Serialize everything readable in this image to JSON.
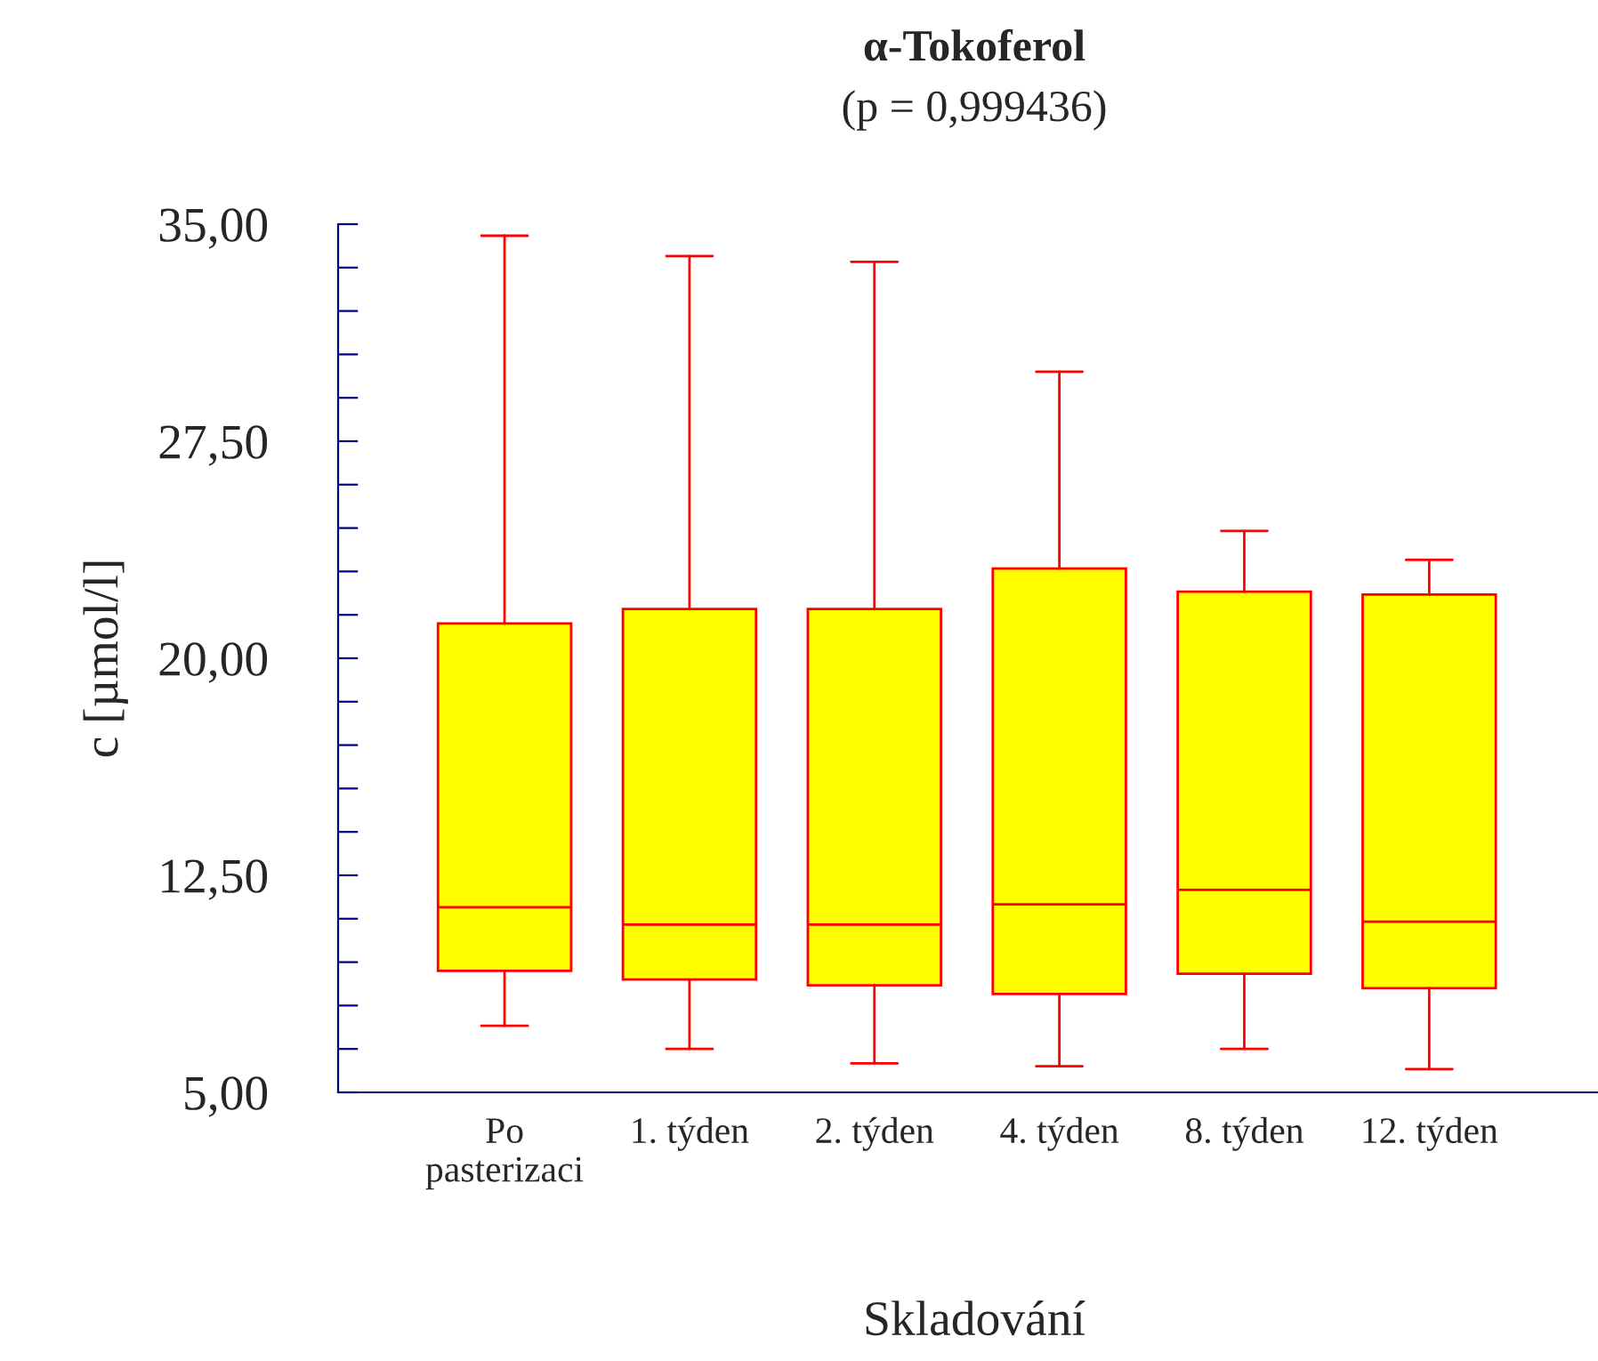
{
  "chart_data": {
    "type": "box",
    "title": "α-Tokoferol",
    "subtitle": "(p = 0,999436)",
    "xlabel": "Skladování",
    "ylabel": "c [µmol/l]",
    "categories": [
      "Po\npasterizaci",
      "1. týden",
      "2. týden",
      "4. týden",
      "8. týden",
      "12. týden"
    ],
    "series": [
      {
        "color": "#ffff00",
        "boxes": [
          {
            "low": 7.3,
            "q1": 9.2,
            "median": 11.4,
            "q3": 21.2,
            "high": 34.6
          },
          {
            "low": 6.5,
            "q1": 8.9,
            "median": 10.8,
            "q3": 21.7,
            "high": 33.9
          },
          {
            "low": 6.0,
            "q1": 8.7,
            "median": 10.8,
            "q3": 21.7,
            "high": 33.7
          },
          {
            "low": 5.9,
            "q1": 8.4,
            "median": 11.5,
            "q3": 23.1,
            "high": 29.9
          },
          {
            "low": 6.5,
            "q1": 9.1,
            "median": 12.0,
            "q3": 22.3,
            "high": 24.4
          },
          {
            "low": 5.8,
            "q1": 8.6,
            "median": 10.9,
            "q3": 22.2,
            "high": 23.4
          }
        ]
      }
    ],
    "ylim": [
      5,
      35
    ],
    "yticks": [
      {
        "value": 5,
        "label": "5,00"
      },
      {
        "value": 6.5,
        "label": null
      },
      {
        "value": 8,
        "label": null
      },
      {
        "value": 9.5,
        "label": null
      },
      {
        "value": 11,
        "label": null
      },
      {
        "value": 12.5,
        "label": "12,50"
      },
      {
        "value": 14,
        "label": null
      },
      {
        "value": 15.5,
        "label": null
      },
      {
        "value": 17,
        "label": null
      },
      {
        "value": 18.5,
        "label": null
      },
      {
        "value": 20,
        "label": "20,00"
      },
      {
        "value": 21.5,
        "label": null
      },
      {
        "value": 23,
        "label": null
      },
      {
        "value": 24.5,
        "label": null
      },
      {
        "value": 26,
        "label": null
      },
      {
        "value": 27.5,
        "label": "27,50"
      },
      {
        "value": 29,
        "label": null
      },
      {
        "value": 30.5,
        "label": null
      },
      {
        "value": 32,
        "label": null
      },
      {
        "value": 33.5,
        "label": null
      },
      {
        "value": 35,
        "label": "35,00"
      }
    ],
    "grid": false
  }
}
